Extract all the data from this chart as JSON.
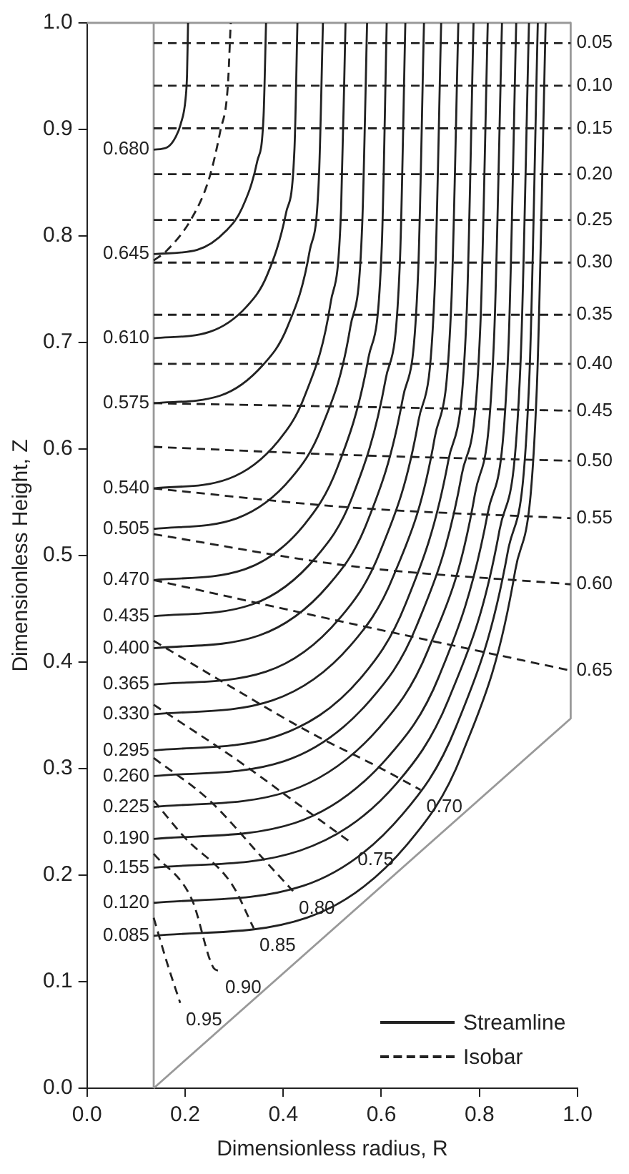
{
  "chart_data": {
    "type": "line",
    "xlabel": "Dimensionless radius, R",
    "ylabel": "Dimensionless Height, Z",
    "xlim": [
      0,
      1
    ],
    "ylim": [
      0,
      1
    ],
    "xticks": [
      {
        "value": 0,
        "label": "0.0"
      },
      0.2,
      0.4,
      0.6,
      0.8,
      {
        "value": 1,
        "label": "1.0"
      }
    ],
    "yticks": [
      {
        "value": 0,
        "label": "0.0"
      },
      0.1,
      0.2,
      0.3,
      0.4,
      0.5,
      0.6,
      0.7,
      0.8,
      0.9,
      {
        "value": 1,
        "label": "1.0"
      }
    ],
    "legend": "bottom right",
    "series": [
      {
        "name": "Streamline",
        "color": "#222222",
        "line_style": "solid",
        "x": [
          0.136,
          0.448,
          0.653,
          0.765,
          0.873,
          0.917,
          0.935
        ],
        "values": [
          0.143,
          0.16,
          0.229,
          0.314,
          0.486,
          0.657,
          1
        ]
      },
      {
        "color": "#222222",
        "line_style": "solid",
        "x": [
          0.136,
          0.441,
          0.643,
          0.752,
          0.858,
          0.902,
          0.919
        ],
        "values": [
          0.174,
          0.19,
          0.257,
          0.339,
          0.504,
          0.67,
          1
        ]
      },
      {
        "color": "#222222",
        "line_style": "solid",
        "x": [
          0.136,
          0.434,
          0.631,
          0.738,
          0.841,
          0.884,
          0.901
        ],
        "values": [
          0.207,
          0.223,
          0.286,
          0.366,
          0.524,
          0.683,
          1
        ]
      },
      {
        "color": "#222222",
        "line_style": "solid",
        "x": [
          0.136,
          0.424,
          0.614,
          0.718,
          0.817,
          0.859,
          0.875
        ],
        "values": [
          0.234,
          0.249,
          0.311,
          0.387,
          0.54,
          0.694,
          1
        ]
      },
      {
        "color": "#222222",
        "line_style": "solid",
        "x": [
          0.136,
          0.413,
          0.595,
          0.695,
          0.791,
          0.83,
          0.846
        ],
        "values": [
          0.264,
          0.279,
          0.338,
          0.411,
          0.558,
          0.706,
          1
        ]
      },
      {
        "color": "#222222",
        "line_style": "solid",
        "x": [
          0.136,
          0.402,
          0.577,
          0.672,
          0.764,
          0.802,
          0.817
        ],
        "values": [
          0.293,
          0.307,
          0.364,
          0.434,
          0.576,
          0.717,
          1
        ]
      },
      {
        "color": "#222222",
        "line_style": "solid",
        "x": [
          0.136,
          0.39,
          0.558,
          0.649,
          0.737,
          0.774,
          0.788
        ],
        "values": [
          0.317,
          0.331,
          0.385,
          0.454,
          0.59,
          0.727,
          1
        ]
      },
      {
        "color": "#222222",
        "line_style": "solid",
        "x": [
          0.136,
          0.378,
          0.538,
          0.625,
          0.709,
          0.743,
          0.757
        ],
        "values": [
          0.351,
          0.364,
          0.416,
          0.481,
          0.611,
          0.74,
          1
        ]
      },
      {
        "color": "#222222",
        "line_style": "solid",
        "x": [
          0.136,
          0.365,
          0.515,
          0.597,
          0.676,
          0.709,
          0.722
        ],
        "values": [
          0.379,
          0.391,
          0.441,
          0.503,
          0.627,
          0.752,
          1
        ]
      },
      {
        "color": "#222222",
        "line_style": "solid",
        "x": [
          0.136,
          0.351,
          0.492,
          0.57,
          0.644,
          0.675,
          0.687
        ],
        "values": [
          0.413,
          0.425,
          0.472,
          0.53,
          0.648,
          0.765,
          1
        ]
      },
      {
        "color": "#222222",
        "line_style": "solid",
        "x": [
          0.136,
          0.336,
          0.468,
          0.54,
          0.609,
          0.638,
          0.649
        ],
        "values": [
          0.443,
          0.454,
          0.499,
          0.554,
          0.666,
          0.777,
          1
        ]
      },
      {
        "color": "#222222",
        "line_style": "solid",
        "x": [
          0.136,
          0.321,
          0.443,
          0.51,
          0.574,
          0.601,
          0.611
        ],
        "values": [
          0.477,
          0.487,
          0.529,
          0.582,
          0.686,
          0.791,
          1
        ]
      },
      {
        "color": "#222222",
        "line_style": "solid",
        "x": [
          0.136,
          0.306,
          0.417,
          0.478,
          0.537,
          0.561,
          0.571
        ],
        "values": [
          0.525,
          0.535,
          0.573,
          0.62,
          0.715,
          0.81,
          1
        ]
      },
      {
        "color": "#222222",
        "line_style": "solid",
        "x": [
          0.136,
          0.288,
          0.389,
          0.444,
          0.497,
          0.518,
          0.527
        ],
        "values": [
          0.563,
          0.572,
          0.607,
          0.65,
          0.738,
          0.825,
          1
        ]
      },
      {
        "color": "#222222",
        "line_style": "solid",
        "x": [
          0.136,
          0.271,
          0.359,
          0.408,
          0.454,
          0.473,
          0.481
        ],
        "values": [
          0.643,
          0.65,
          0.679,
          0.714,
          0.786,
          0.857,
          1
        ]
      },
      {
        "color": "#222222",
        "line_style": "solid",
        "x": [
          0.136,
          0.25,
          0.326,
          0.367,
          0.406,
          0.423,
          0.429
        ],
        "values": [
          0.704,
          0.71,
          0.734,
          0.763,
          0.822,
          0.882,
          1
        ]
      },
      {
        "color": "#222222",
        "line_style": "solid",
        "x": [
          0.136,
          0.225,
          0.284,
          0.316,
          0.347,
          0.36,
          0.365
        ],
        "values": [
          0.783,
          0.787,
          0.805,
          0.826,
          0.87,
          0.913,
          1
        ]
      },
      {
        "color": "#222222",
        "line_style": "solid",
        "x": [
          0.136,
          0.163,
          0.181,
          0.191,
          0.201,
          0.204,
          0.206
        ],
        "values": [
          0.881,
          0.883,
          0.893,
          0.905,
          0.929,
          0.952,
          1
        ]
      },
      {
        "name": "Isobar",
        "color": "#222222",
        "line_style": "dashed",
        "x": [
          0.136,
          0.986
        ],
        "values": [
          0.981,
          0.981
        ]
      },
      {
        "color": "#222222",
        "line_style": "dashed",
        "x": [
          0.136,
          0.986
        ],
        "values": [
          0.941,
          0.941
        ]
      },
      {
        "color": "#222222",
        "line_style": "dashed",
        "x": [
          0.136,
          0.986
        ],
        "values": [
          0.901,
          0.901
        ]
      },
      {
        "color": "#222222",
        "line_style": "dashed",
        "x": [
          0.136,
          0.986
        ],
        "values": [
          0.858,
          0.858
        ]
      },
      {
        "color": "#222222",
        "line_style": "dashed",
        "x": [
          0.136,
          0.986
        ],
        "values": [
          0.815,
          0.815
        ]
      },
      {
        "color": "#222222",
        "line_style": "dashed",
        "x": [
          0.136,
          0.986
        ],
        "values": [
          0.775,
          0.775
        ]
      },
      {
        "color": "#222222",
        "line_style": "dashed",
        "x": [
          0.136,
          0.986
        ],
        "values": [
          0.726,
          0.726
        ]
      },
      {
        "color": "#222222",
        "line_style": "dashed",
        "x": [
          0.136,
          0.986
        ],
        "values": [
          0.68,
          0.68
        ]
      },
      {
        "color": "#222222",
        "line_style": "dashed",
        "x": [
          0.136,
          0.162,
          0.214,
          0.249,
          0.272,
          0.287,
          0.293
        ],
        "values": [
          0.777,
          0.786,
          0.817,
          0.854,
          0.899,
          0.94,
          1
        ]
      },
      {
        "color": "#222222",
        "line_style": "dashed",
        "x": [
          0.136,
          0.986
        ],
        "values": [
          0.643,
          0.636
        ]
      },
      {
        "color": "#222222",
        "line_style": "dashed",
        "x": [
          0.136,
          0.56,
          0.986
        ],
        "values": [
          0.602,
          0.594,
          0.589
        ]
      },
      {
        "color": "#222222",
        "line_style": "dashed",
        "x": [
          0.136,
          0.54,
          0.986
        ],
        "values": [
          0.563,
          0.545,
          0.535
        ]
      },
      {
        "color": "#222222",
        "line_style": "dashed",
        "x": [
          0.136,
          0.54,
          0.986
        ],
        "values": [
          0.52,
          0.49,
          0.473
        ]
      },
      {
        "color": "#222222",
        "line_style": "dashed",
        "x": [
          0.136,
          0.54,
          0.986
        ],
        "values": [
          0.477,
          0.436,
          0.392
        ]
      },
      {
        "color": "#222222",
        "line_style": "dashed",
        "x": [
          0.136,
          0.3,
          0.45,
          0.6,
          0.68
        ],
        "values": [
          0.42,
          0.375,
          0.335,
          0.3,
          0.28
        ]
      },
      {
        "color": "#222222",
        "line_style": "dashed",
        "x": [
          0.136,
          0.3,
          0.45,
          0.54
        ],
        "values": [
          0.36,
          0.31,
          0.26,
          0.23
        ]
      },
      {
        "color": "#222222",
        "line_style": "dashed",
        "x": [
          0.136,
          0.25,
          0.36,
          0.42
        ],
        "values": [
          0.31,
          0.27,
          0.215,
          0.185
        ]
      },
      {
        "color": "#222222",
        "line_style": "dashed",
        "x": [
          0.136,
          0.2,
          0.296,
          0.34
        ],
        "values": [
          0.27,
          0.235,
          0.191,
          0.15
        ]
      },
      {
        "color": "#222222",
        "line_style": "dashed",
        "x": [
          0.136,
          0.214,
          0.258,
          0.27
        ],
        "values": [
          0.22,
          0.177,
          0.113,
          0.11
        ]
      },
      {
        "color": "#222222",
        "line_style": "dashed",
        "x": [
          0.136,
          0.163,
          0.19
        ],
        "values": [
          0.16,
          0.118,
          0.08
        ]
      },
      {
        "color": "#999999",
        "line_style": "solid",
        "x": [
          0,
          0.986
        ],
        "values": [
          1,
          1
        ]
      },
      {
        "color": "#999999",
        "line_style": "solid",
        "x": [
          0.986,
          0.986,
          0.136
        ],
        "values": [
          1,
          0.347,
          0
        ]
      },
      {
        "color": "#999999",
        "line_style": "solid",
        "x": [
          0.136,
          0.136
        ],
        "values": [
          0,
          1
        ]
      }
    ],
    "annotations": [
      {
        "text": "0.085",
        "x": 0.136,
        "y": 0.143
      },
      {
        "text": "0.120",
        "x": 0.136,
        "y": 0.174
      },
      {
        "text": "0.155",
        "x": 0.136,
        "y": 0.207
      },
      {
        "text": "0.190",
        "x": 0.136,
        "y": 0.234
      },
      {
        "text": "0.225",
        "x": 0.136,
        "y": 0.264
      },
      {
        "text": "0.260",
        "x": 0.136,
        "y": 0.293
      },
      {
        "text": "0.295",
        "x": 0.136,
        "y": 0.317
      },
      {
        "text": "0.330",
        "x": 0.136,
        "y": 0.351
      },
      {
        "text": "0.365",
        "x": 0.136,
        "y": 0.379
      },
      {
        "text": "0.400",
        "x": 0.136,
        "y": 0.413
      },
      {
        "text": "0.435",
        "x": 0.136,
        "y": 0.443
      },
      {
        "text": "0.470",
        "x": 0.136,
        "y": 0.477
      },
      {
        "text": "0.505",
        "x": 0.136,
        "y": 0.525
      },
      {
        "text": "0.540",
        "x": 0.136,
        "y": 0.563
      },
      {
        "text": "0.575",
        "x": 0.136,
        "y": 0.643
      },
      {
        "text": "0.610",
        "x": 0.136,
        "y": 0.704
      },
      {
        "text": "0.645",
        "x": 0.136,
        "y": 0.783
      },
      {
        "text": "0.680",
        "x": 0.136,
        "y": 0.881
      },
      {
        "text": "0.05",
        "x": 0.986,
        "y": 0.981
      },
      {
        "text": "0.10",
        "x": 0.986,
        "y": 0.941
      },
      {
        "text": "0.15",
        "x": 0.986,
        "y": 0.901
      },
      {
        "text": "0.20",
        "x": 0.986,
        "y": 0.858
      },
      {
        "text": "0.25",
        "x": 0.986,
        "y": 0.815
      },
      {
        "text": "0.30",
        "x": 0.986,
        "y": 0.775
      },
      {
        "text": "0.35",
        "x": 0.986,
        "y": 0.726
      },
      {
        "text": "0.40",
        "x": 0.986,
        "y": 0.68
      },
      {
        "text": "0.45",
        "x": 0.986,
        "y": 0.636
      },
      {
        "text": "0.50",
        "x": 0.986,
        "y": 0.589
      },
      {
        "text": "0.55",
        "x": 0.986,
        "y": 0.535
      },
      {
        "text": "0.60",
        "x": 0.986,
        "y": 0.473
      },
      {
        "text": "0.65",
        "x": 0.986,
        "y": 0.392
      },
      {
        "text": "0.70",
        "x": 0.68,
        "y": 0.28
      },
      {
        "text": "0.75",
        "x": 0.54,
        "y": 0.23
      },
      {
        "text": "0.80",
        "x": 0.42,
        "y": 0.185
      },
      {
        "text": "0.85",
        "x": 0.34,
        "y": 0.15
      },
      {
        "text": "0.90",
        "x": 0.27,
        "y": 0.11
      },
      {
        "text": "0.95",
        "x": 0.19,
        "y": 0.08
      }
    ]
  }
}
